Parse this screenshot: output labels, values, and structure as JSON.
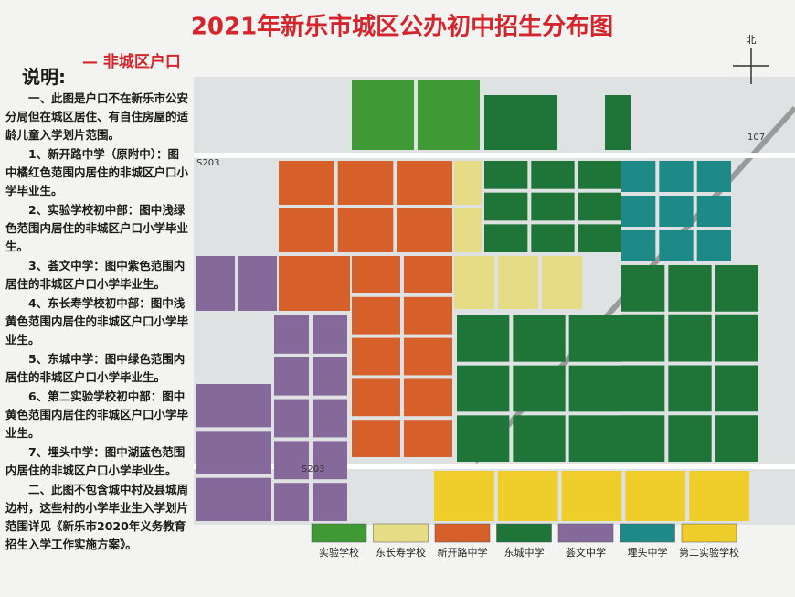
{
  "header": {
    "title": "2021年新乐市城区公办初中招生分布图",
    "subtitle": "— 非城区户口",
    "compass": "北"
  },
  "notes": {
    "heading": "说明:",
    "items": [
      "一、此图是户口不在新乐市公安分局但在城区居住、有自住房屋的适龄儿童入学划片范围。",
      "1、新开路中学（原附中）：图中橘红色范围内居住的非城区户口小学毕业生。",
      "2、实验学校初中部：图中浅绿色范围内居住的非城区户口小学毕业生。",
      "3、荟文中学：图中紫色范围内居住的非城区户口小学毕业生。",
      "4、东长寿学校初中部：图中浅黄色范围内居住的非城区户口小学毕业生。",
      "5、东城中学：图中绿色范围内居住的非城区户口小学毕业生。",
      "6、第二实验学校初中部：图中黄色范围内居住的非城区户口小学毕业生。",
      "7、埋头中学：图中湖蓝色范围内居住的非城区户口小学毕业生。",
      "二、此图不包含城中村及县城周边村，这些村的小学毕业生入学划片范围详见《新乐市2020年义务教育招生入学工作实施方案》。"
    ]
  },
  "map_labels": [
    "S203",
    "107",
    "S203"
  ],
  "legend": [
    {
      "label": "实验学校",
      "color": "#3f9a35"
    },
    {
      "label": "东长寿学校",
      "color": "#e6dc86"
    },
    {
      "label": "新开路中学",
      "color": "#d65f2a"
    },
    {
      "label": "东城中学",
      "color": "#1f7538"
    },
    {
      "label": "荟文中学",
      "color": "#85699a"
    },
    {
      "label": "埋头中学",
      "color": "#1e8a88"
    },
    {
      "label": "第二实验学校",
      "color": "#efcd2a"
    }
  ]
}
